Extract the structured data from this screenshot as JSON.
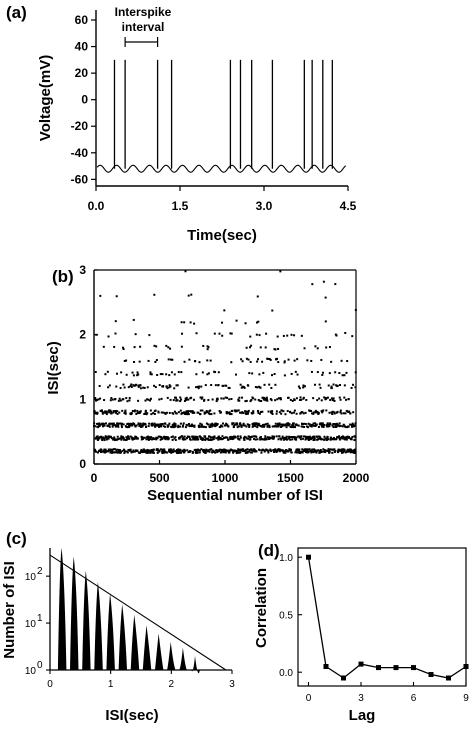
{
  "panels": {
    "a": "(a)",
    "b": "(b)",
    "c": "(c)",
    "d": "(d)"
  },
  "annotation": {
    "line1": "Interspike",
    "line2": "interval"
  },
  "chart_data": [
    {
      "id": "a",
      "type": "line",
      "xlabel": "Time(sec)",
      "ylabel": "Voltage(mV)",
      "xlim": [
        0,
        4.5
      ],
      "ylim": [
        -65,
        60
      ],
      "xticks": [
        "0.0",
        "1.5",
        "3.0",
        "4.5"
      ],
      "xtick_values": [
        0,
        1.5,
        3.0,
        4.5
      ],
      "yticks": [
        "60",
        "40",
        "20",
        "0",
        "-20",
        "-40",
        "-60"
      ],
      "ytick_values": [
        60,
        40,
        20,
        0,
        -20,
        -40,
        -60
      ],
      "baseline_mV": -52,
      "spike_peak_mV": 30,
      "spike_times_sec": [
        0.33,
        0.52,
        1.1,
        1.35,
        2.4,
        2.58,
        2.78,
        3.15,
        3.72,
        3.86,
        4.05,
        4.22
      ],
      "interspike_interval_sec": [
        0.52,
        1.1
      ]
    },
    {
      "id": "b",
      "type": "scatter",
      "xlabel": "Sequential number of ISI",
      "ylabel": "ISI(sec)",
      "xlim": [
        0,
        2000
      ],
      "ylim": [
        0,
        3
      ],
      "xticks": [
        "0",
        "500",
        "1000",
        "1500",
        "2000"
      ],
      "xtick_values": [
        0,
        500,
        1000,
        1500,
        2000
      ],
      "yticks": [
        "0",
        "1",
        "2",
        "3"
      ],
      "ytick_values": [
        0,
        1,
        2,
        3
      ],
      "n_points": 1950,
      "isi_levels_sec": [
        0.2,
        0.4,
        0.6,
        0.8,
        1.0,
        1.2,
        1.4,
        1.6,
        1.8,
        2.0,
        2.2,
        2.4,
        2.6,
        2.8,
        3.0
      ],
      "level_density": [
        1.0,
        0.9,
        0.75,
        0.5,
        0.3,
        0.17,
        0.1,
        0.07,
        0.05,
        0.035,
        0.03,
        0.015,
        0.012,
        0.01,
        0.006
      ]
    },
    {
      "id": "c",
      "type": "bar",
      "xlabel": "ISI(sec)",
      "ylabel": "Number of ISI",
      "xlim": [
        0,
        3
      ],
      "ylim_log10": [
        0,
        2.6
      ],
      "xticks": [
        "0",
        "1",
        "2",
        "3"
      ],
      "xtick_values": [
        0,
        1,
        2,
        3
      ],
      "yticks": [
        "10",
        "10",
        "10"
      ],
      "ytick_exponents": [
        "0",
        "1",
        "2"
      ],
      "ytick_values_log10": [
        0,
        1,
        2
      ],
      "peaks_isi_sec": [
        0.2,
        0.4,
        0.6,
        0.8,
        1.0,
        1.2,
        1.4,
        1.6,
        1.8,
        2.0,
        2.2,
        2.4
      ],
      "peak_counts": [
        400,
        260,
        130,
        75,
        42,
        25,
        15,
        9,
        6,
        4,
        3,
        2
      ],
      "fit_line": {
        "x": [
          0,
          2.9
        ],
        "log10_y": [
          2.45,
          0
        ]
      }
    },
    {
      "id": "d",
      "type": "line",
      "xlabel": "Lag",
      "ylabel": "Correlation",
      "xlim": [
        -0.6,
        9
      ],
      "ylim": [
        -0.12,
        1.08
      ],
      "xticks": [
        "0",
        "3",
        "6",
        "9"
      ],
      "xtick_values": [
        0,
        3,
        6,
        9
      ],
      "yticks": [
        "1.0",
        "0.5",
        "0.0"
      ],
      "ytick_values": [
        1.0,
        0.5,
        0.0
      ],
      "x": [
        0,
        1,
        2,
        3,
        4,
        5,
        6,
        7,
        8,
        9
      ],
      "y": [
        1.0,
        0.05,
        -0.05,
        0.07,
        0.04,
        0.04,
        0.04,
        -0.02,
        -0.05,
        0.05
      ]
    }
  ]
}
